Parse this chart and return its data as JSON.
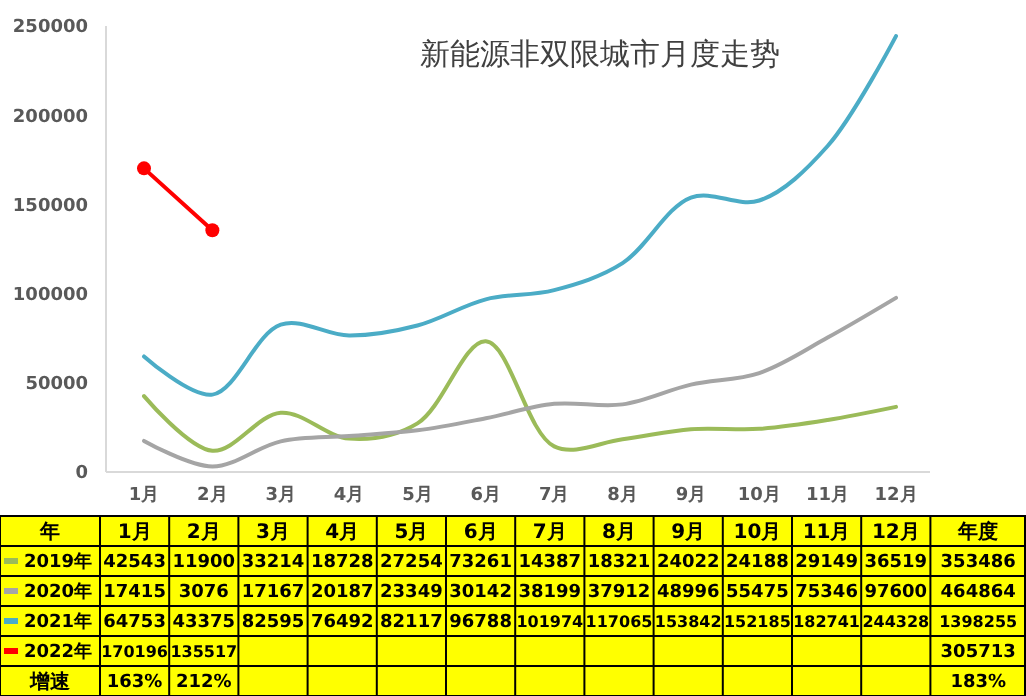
{
  "chart_data": {
    "type": "line",
    "title": "新能源非双限城市月度走势",
    "categories": [
      "1月",
      "2月",
      "3月",
      "4月",
      "5月",
      "6月",
      "7月",
      "8月",
      "9月",
      "10月",
      "11月",
      "12月"
    ],
    "series": [
      {
        "name": "2019年",
        "color": "#9bbb59",
        "values": [
          42543,
          11900,
          33214,
          18728,
          27254,
          73261,
          14387,
          18321,
          24022,
          24188,
          29149,
          36519
        ]
      },
      {
        "name": "2020年",
        "color": "#a5a5a5",
        "values": [
          17415,
          3076,
          17167,
          20187,
          23349,
          30142,
          38199,
          37912,
          48996,
          55475,
          75346,
          97600
        ]
      },
      {
        "name": "2021年",
        "color": "#4bacc6",
        "values": [
          64753,
          43375,
          82595,
          76492,
          82117,
          96788,
          101974,
          117065,
          153842,
          152185,
          182741,
          244328
        ]
      },
      {
        "name": "2022年",
        "color": "#ff0000",
        "marker": "circle",
        "values": [
          170196,
          135517,
          null,
          null,
          null,
          null,
          null,
          null,
          null,
          null,
          null,
          null
        ]
      }
    ],
    "ylim": [
      0,
      250000
    ],
    "yticks": [
      0,
      50000,
      100000,
      150000,
      200000,
      250000
    ],
    "data_labels": true,
    "legend": "bottom",
    "annotations": [
      "年",
      "年度",
      "353486",
      "464864",
      "1398255",
      "305713",
      "增速",
      "163%",
      "212%",
      "183%"
    ]
  }
}
